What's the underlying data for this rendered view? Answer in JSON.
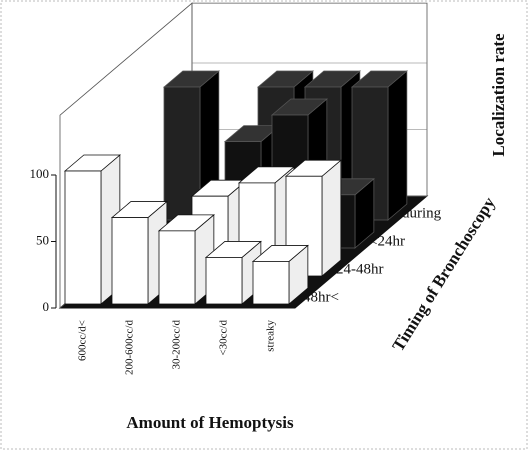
{
  "chart_data": {
    "type": "bar3d",
    "categories": [
      "600cc/d<",
      "200-600cc/d",
      "30-200cc/d",
      "<30cc/d",
      "streaky"
    ],
    "series": [
      {
        "name": "48hr<",
        "color": "#ffffff",
        "values": [
          100,
          65,
          55,
          35,
          32
        ]
      },
      {
        "name": "24-48hr",
        "color": "#ffffff",
        "values": [
          0,
          0,
          60,
          70,
          75
        ]
      },
      {
        "name": "<24hr",
        "color": "#111111",
        "values": [
          0,
          0,
          80,
          100,
          40
        ]
      },
      {
        "name": "during",
        "color": "#222222",
        "values": [
          100,
          0,
          100,
          100,
          100
        ]
      }
    ],
    "ylim": [
      0,
      100
    ],
    "yticks": [
      0,
      50,
      100
    ],
    "x_label": "Amount of Hemoptysis",
    "y_label": "Localization rate",
    "z_label": "Timing of Bronchoscopy"
  }
}
